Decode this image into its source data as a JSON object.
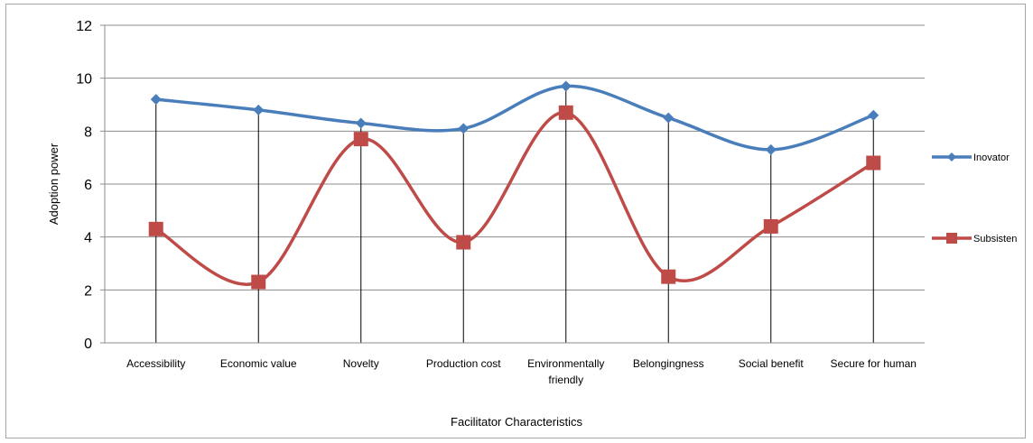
{
  "chart_data": {
    "type": "line",
    "title": "",
    "xlabel": "Facilitator Characteristics",
    "ylabel": "Adoption power",
    "ylim": [
      0,
      12
    ],
    "ytick_step": 2,
    "ytick_labels": [
      "0",
      "2",
      "4",
      "6",
      "8",
      "10",
      "12"
    ],
    "grid": true,
    "legend_position": "right",
    "smooth": true,
    "categories": [
      "Accessibility",
      "Economic value",
      "Novelty",
      "Production cost",
      "Environmentally friendly",
      "Belongingness",
      "Social benefit",
      "Secure for human"
    ],
    "category_lines": [
      [
        "Accessibility"
      ],
      [
        "Economic value"
      ],
      [
        "Novelty"
      ],
      [
        "Production cost"
      ],
      [
        "Environmentally",
        "friendly"
      ],
      [
        "Belongingness"
      ],
      [
        "Social benefit"
      ],
      [
        "Secure for human"
      ]
    ],
    "series": [
      {
        "name": "Inovator",
        "color": "#4a7ebb",
        "marker": "diamond",
        "values": [
          9.2,
          8.8,
          8.3,
          8.1,
          9.7,
          8.5,
          7.3,
          8.6
        ]
      },
      {
        "name": "Subsisten",
        "color": "#be4b48",
        "marker": "square",
        "values": [
          4.3,
          2.3,
          7.7,
          3.8,
          8.7,
          2.5,
          4.4,
          6.8
        ]
      }
    ]
  }
}
